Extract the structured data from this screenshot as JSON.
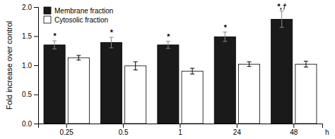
{
  "chart_data": {
    "type": "bar",
    "categories": [
      "0.25",
      "0.5",
      "1",
      "24",
      "48"
    ],
    "series": [
      {
        "name": "Membrane fraction",
        "color": "#1a1a1a",
        "values": [
          1.35,
          1.39,
          1.35,
          1.49,
          1.79
        ],
        "errors": [
          0.07,
          0.09,
          0.06,
          0.08,
          0.14
        ],
        "annotations": [
          "*",
          "*",
          "*",
          "*",
          "*,†"
        ]
      },
      {
        "name": "Cytosolic fraction",
        "color": "#ffffff",
        "values": [
          1.13,
          0.99,
          0.9,
          1.02,
          1.02
        ],
        "errors": [
          0.04,
          0.07,
          0.05,
          0.04,
          0.05
        ]
      }
    ],
    "ylabel": "Fold increase over control",
    "xlabel": "h",
    "ylim": [
      0.0,
      2.0
    ],
    "yticks": [
      {
        "value": 0.0,
        "label": "0.0"
      },
      0.5,
      {
        "value": 1.0,
        "label": "1.0"
      },
      1.5,
      {
        "value": 2.0,
        "label": "2.0"
      }
    ],
    "legend": "upper left",
    "grid": false
  }
}
